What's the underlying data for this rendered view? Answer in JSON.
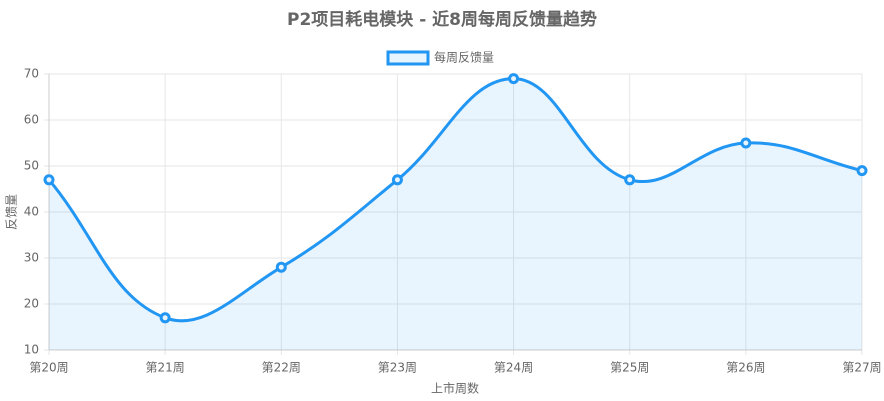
{
  "chart_data": {
    "type": "line",
    "title": "P2项目耗电模块 - 近8周每周反馈量趋势",
    "x_label": "上市周数",
    "y_label": "反馈量",
    "categories": [
      "第20周",
      "第21周",
      "第22周",
      "第23周",
      "第24周",
      "第25周",
      "第26周",
      "第27周"
    ],
    "series": [
      {
        "name": "每周反馈量",
        "color": "#2196f3",
        "values": [
          47,
          17,
          28,
          47,
          69,
          47,
          55,
          49
        ]
      }
    ],
    "ylim": [
      10,
      70
    ],
    "yticks": [
      10,
      20,
      30,
      40,
      50,
      60,
      70
    ],
    "grid": true,
    "fill": true,
    "legend": "top"
  }
}
